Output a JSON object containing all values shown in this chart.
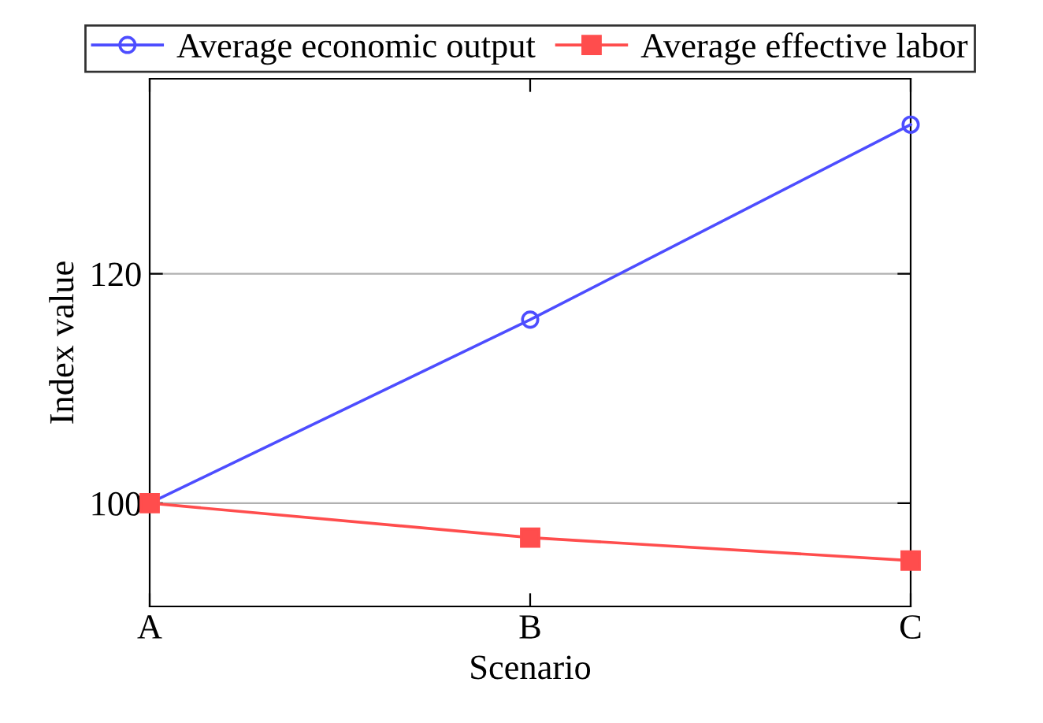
{
  "chart_data": {
    "type": "line",
    "xlabel": "Scenario",
    "ylabel": "Index value",
    "categories": [
      "A",
      "B",
      "C"
    ],
    "series": [
      {
        "name": "Average economic output",
        "color": "#4d4dff",
        "values": [
          100,
          116,
          133
        ],
        "marker": "circle"
      },
      {
        "name": "Average effective labor",
        "color": "#ff4d4d",
        "values": [
          100,
          97,
          95
        ],
        "marker": "square"
      }
    ],
    "ylim": [
      91,
      137
    ],
    "yticks": [
      100,
      120
    ],
    "grid": "y",
    "legend": "top",
    "line_style": "solid"
  }
}
